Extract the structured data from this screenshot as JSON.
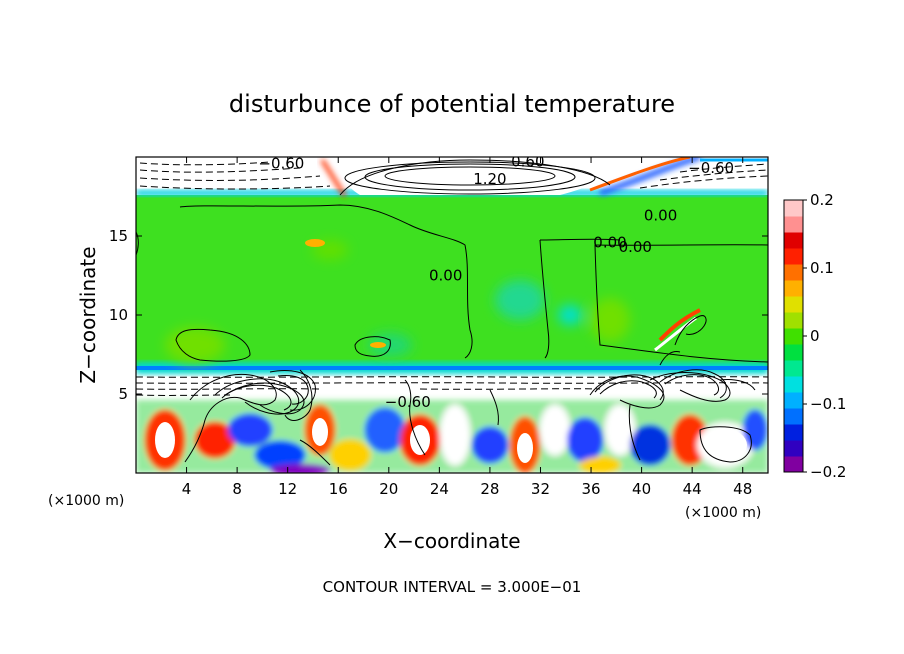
{
  "chart_data": {
    "type": "heatmap",
    "title": "disturbunce of potential temperature",
    "xlabel": "X−coordinate",
    "ylabel": "Z−coordinate",
    "x_unit_left": "(×1000 m)",
    "x_unit_right": "(×1000 m)",
    "xlim": [
      0,
      50
    ],
    "ylim": [
      0,
      20
    ],
    "x_ticks": [
      {
        "value": 4,
        "label": "4"
      },
      {
        "value": 8,
        "label": "8"
      },
      {
        "value": 12,
        "label": "12"
      },
      {
        "value": 16,
        "label": "16"
      },
      {
        "value": 20,
        "label": "20"
      },
      {
        "value": 24,
        "label": "24"
      },
      {
        "value": 28,
        "label": "28"
      },
      {
        "value": 32,
        "label": "32"
      },
      {
        "value": 36,
        "label": "36"
      },
      {
        "value": 40,
        "label": "40"
      },
      {
        "value": 44,
        "label": "44"
      },
      {
        "value": 48,
        "label": "48"
      }
    ],
    "y_ticks": [
      {
        "value": 5,
        "label": "5"
      },
      {
        "value": 10,
        "label": "10"
      },
      {
        "value": 15,
        "label": "15"
      }
    ],
    "colorbar": {
      "range": [
        -0.2,
        0.2
      ],
      "ticks": [
        {
          "value": 0.2,
          "label": "0.2"
        },
        {
          "value": 0.1,
          "label": "0.1"
        },
        {
          "value": 0,
          "label": "0"
        },
        {
          "value": -0.1,
          "label": "−0.1"
        },
        {
          "value": -0.2,
          "label": "−0.2"
        }
      ],
      "colors": [
        "#8000a0",
        "#3000c0",
        "#0020e0",
        "#0070ff",
        "#00b0ff",
        "#00e0e0",
        "#00e890",
        "#00e040",
        "#40e000",
        "#a0e000",
        "#e0e000",
        "#ffb000",
        "#ff7000",
        "#ff2000",
        "#e00000",
        "#ff9090",
        "#ffc8c8"
      ]
    },
    "contour_labels": [
      {
        "text": "−0.60",
        "x": 11.5,
        "z": 19.6
      },
      {
        "text": "0.60",
        "x": 31.0,
        "z": 19.7
      },
      {
        "text": "1.20",
        "x": 28.0,
        "z": 18.6
      },
      {
        "text": "−0.60",
        "x": 45.5,
        "z": 19.3
      },
      {
        "text": "0.00",
        "x": 41.5,
        "z": 16.3
      },
      {
        "text": "0.00",
        "x": 37.5,
        "z": 14.6
      },
      {
        "text": "0.00",
        "x": 39.5,
        "z": 14.3
      },
      {
        "text": "0.00",
        "x": 24.5,
        "z": 12.5
      },
      {
        "text": "−0.60",
        "x": 21.5,
        "z": 4.5
      }
    ],
    "footer": "CONTOUR INTERVAL = 3.000E−01"
  }
}
